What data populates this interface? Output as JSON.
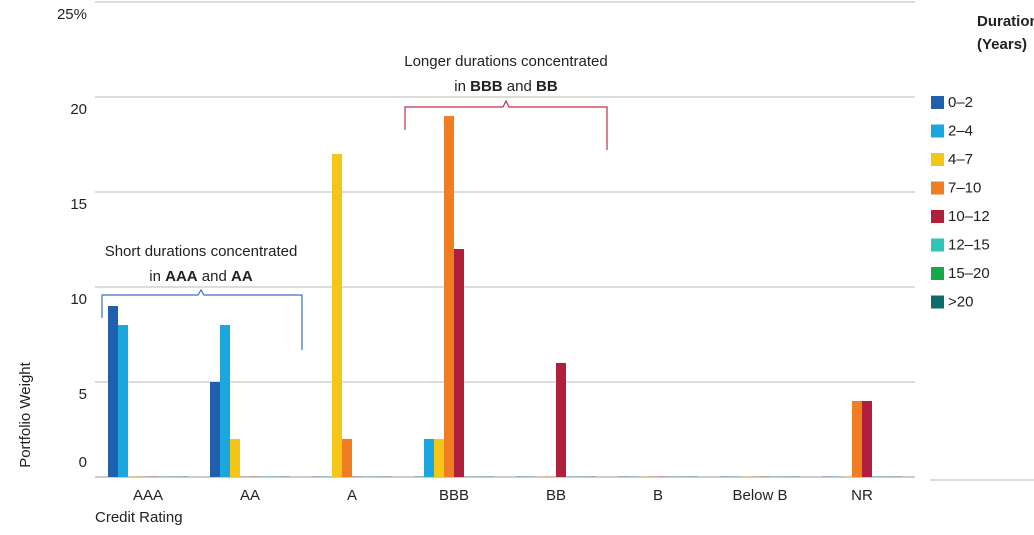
{
  "chart_data": {
    "type": "bar",
    "y_label": "Portfolio Weight",
    "x_label": "Credit Rating",
    "legend_title": [
      "Duration",
      "(Years)"
    ],
    "categories": [
      "AAA",
      "AA",
      "A",
      "BBB",
      "BB",
      "B",
      "Below B",
      "NR"
    ],
    "series": [
      {
        "name": "0–2",
        "color": "#1f5fad",
        "values": [
          9,
          5,
          0,
          0,
          0,
          0,
          0,
          0
        ]
      },
      {
        "name": "2–4",
        "color": "#1aa7e0",
        "values": [
          8,
          8,
          0,
          2,
          0,
          0,
          0,
          0
        ]
      },
      {
        "name": "4–7",
        "color": "#f5c518",
        "values": [
          0,
          2,
          17,
          2,
          0,
          0,
          0,
          0
        ]
      },
      {
        "name": "7–10",
        "color": "#f07d22",
        "values": [
          0,
          0,
          2,
          19,
          0,
          0,
          0,
          4
        ]
      },
      {
        "name": "10–12",
        "color": "#b0203c",
        "values": [
          0,
          0,
          0,
          12,
          6,
          0,
          0,
          4
        ]
      },
      {
        "name": "12–15",
        "color": "#2ec4b6",
        "values": [
          0,
          0,
          0,
          0,
          0,
          0,
          0,
          0
        ]
      },
      {
        "name": "15–20",
        "color": "#17a84b",
        "values": [
          0,
          0,
          0,
          0,
          0,
          0,
          0,
          0
        ]
      },
      {
        "name": ">20",
        "color": "#0d6b6b",
        "values": [
          0,
          0,
          0,
          0,
          0,
          0,
          0,
          0
        ]
      }
    ],
    "ylim": [
      0,
      25
    ],
    "yticks": [
      0,
      5,
      10,
      15,
      20,
      {
        "value": 25,
        "label": "25%"
      }
    ],
    "grid": true,
    "annotations": [
      {
        "lines": [
          [
            "Short durations concentrated"
          ],
          [
            "in ",
            "AAA",
            " and ",
            "AA"
          ]
        ]
      },
      {
        "lines": [
          [
            "Longer durations concentrated"
          ],
          [
            "in ",
            "BBB",
            " and ",
            "BB"
          ]
        ]
      }
    ]
  }
}
